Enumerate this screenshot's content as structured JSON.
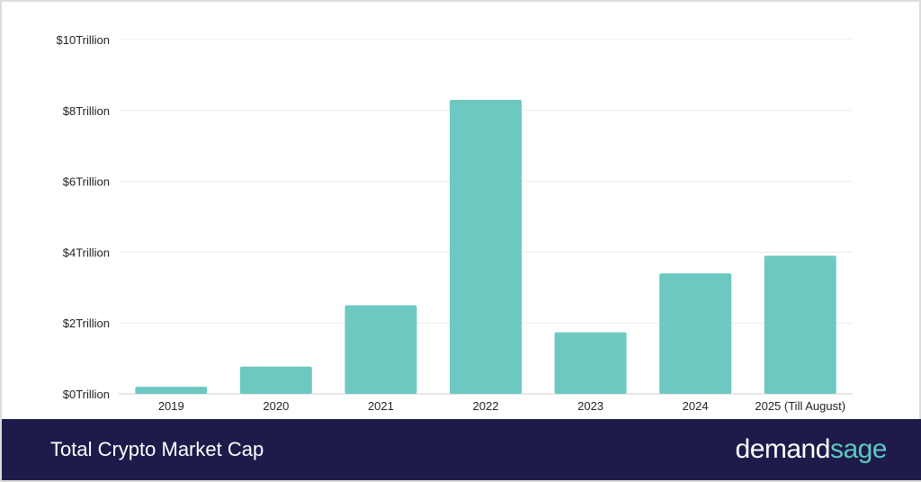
{
  "chart_data": {
    "type": "bar",
    "categories": [
      "2019",
      "2020",
      "2021",
      "2022",
      "2023",
      "2024",
      "2025 (Till August)"
    ],
    "values": [
      0.2,
      0.77,
      2.5,
      8.3,
      1.74,
      3.4,
      3.9
    ],
    "value_unit": "trillion USD",
    "y_tick_labels": [
      "$0Trillion",
      "$2Trillion",
      "$4Trillion",
      "$6Trillion",
      "$8Trillion",
      "$10Trillion"
    ],
    "y_ticks": [
      0,
      2,
      4,
      6,
      8,
      10
    ],
    "ylim": [
      0,
      10
    ],
    "grid": true,
    "bar_color": "#6ec8c2"
  },
  "footer": {
    "title": "Total Crypto Market Cap",
    "brand_part1": "demand",
    "brand_part2": "sage"
  }
}
